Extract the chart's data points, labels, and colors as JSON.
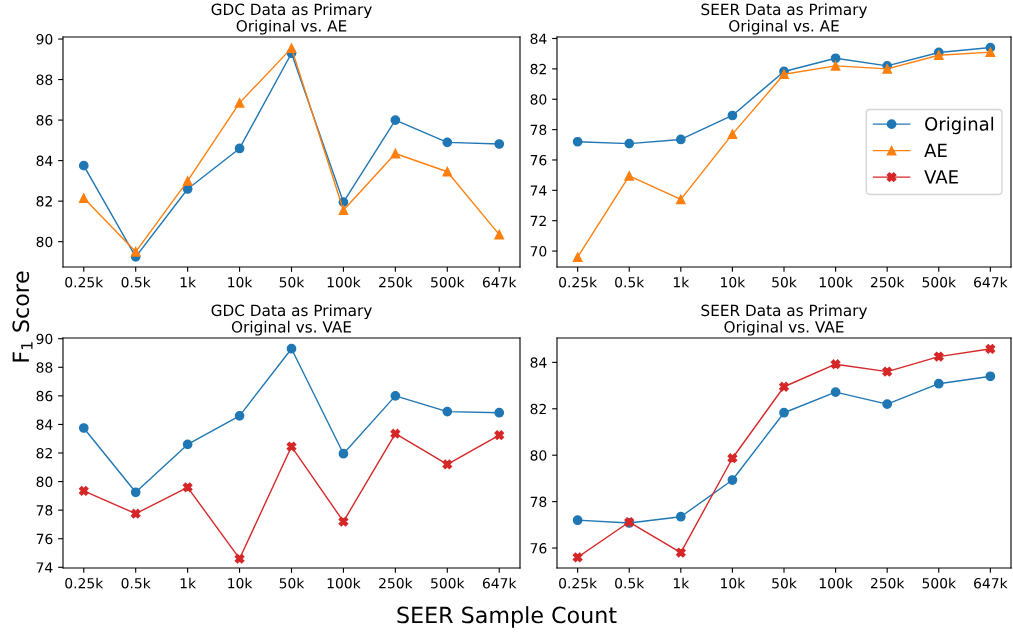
{
  "chart_data": [
    {
      "type": "line",
      "title": "GDC Data as Primary\nOriginal vs. AE",
      "xlabel": "SEER Sample Count",
      "ylabel": "F$_{1}$ Score",
      "categories": [
        "0.25k",
        "0.5k",
        "1k",
        "10k",
        "50k",
        "100k",
        "250k",
        "500k",
        "647k"
      ],
      "ylim": [
        78.75,
        90.1
      ],
      "yticks": [
        80,
        82,
        84,
        86,
        88,
        90
      ],
      "legend": false,
      "series": [
        {
          "color": "#1f77b4",
          "marker": "circle",
          "values": [
            83.75,
            79.25,
            82.6,
            84.6,
            89.3,
            81.95,
            86.0,
            84.9,
            84.82
          ]
        },
        {
          "color": "#ff7f0e",
          "marker": "triangle",
          "values": [
            82.15,
            79.5,
            83.0,
            86.85,
            89.55,
            81.55,
            84.35,
            83.45,
            80.35
          ]
        }
      ]
    },
    {
      "type": "line",
      "title": "SEER Data as Primary\nOriginal vs. AE",
      "categories": [
        "0.25k",
        "0.5k",
        "1k",
        "10k",
        "50k",
        "100k",
        "250k",
        "500k",
        "647k"
      ],
      "ylim": [
        68.95,
        84.1
      ],
      "yticks": [
        70,
        72,
        74,
        76,
        78,
        80,
        82,
        84
      ],
      "legend": "center right",
      "series": [
        {
          "name": "Original",
          "color": "#1f77b4",
          "marker": "circle",
          "values": [
            77.2,
            77.08,
            77.35,
            78.93,
            81.83,
            82.7,
            82.2,
            83.08,
            83.4
          ]
        },
        {
          "name": "AE",
          "color": "#ff7f0e",
          "marker": "triangle",
          "values": [
            69.6,
            74.95,
            73.4,
            77.7,
            81.65,
            82.2,
            82.0,
            82.9,
            83.1
          ]
        },
        {
          "name": "VAE",
          "color": "#d62728",
          "marker": "cross",
          "values": [
            null,
            null,
            null,
            null,
            null,
            null,
            null,
            null,
            null
          ]
        }
      ]
    },
    {
      "type": "line",
      "title": "GDC Data as Primary\nOriginal vs. VAE",
      "categories": [
        "0.25k",
        "0.5k",
        "1k",
        "10k",
        "50k",
        "100k",
        "250k",
        "500k",
        "647k"
      ],
      "ylim": [
        73.95,
        90.05
      ],
      "yticks": [
        74,
        76,
        78,
        80,
        82,
        84,
        86,
        88,
        90
      ],
      "legend": false,
      "series": [
        {
          "color": "#1f77b4",
          "marker": "circle",
          "values": [
            83.75,
            79.25,
            82.6,
            84.6,
            89.3,
            81.95,
            86.0,
            84.9,
            84.82
          ]
        },
        {
          "color": "#d62728",
          "marker": "cross",
          "values": [
            79.35,
            77.75,
            79.6,
            74.6,
            82.45,
            77.2,
            83.35,
            81.2,
            83.25
          ]
        }
      ]
    },
    {
      "type": "line",
      "title": "SEER Data as Primary\nOriginal vs. VAE",
      "categories": [
        "0.25k",
        "0.5k",
        "1k",
        "10k",
        "50k",
        "100k",
        "250k",
        "500k",
        "647k"
      ],
      "ylim": [
        75.14,
        85.05
      ],
      "yticks": [
        76,
        78,
        80,
        82,
        84
      ],
      "legend": false,
      "series": [
        {
          "color": "#1f77b4",
          "marker": "circle",
          "values": [
            77.2,
            77.08,
            77.35,
            78.93,
            81.83,
            82.72,
            82.2,
            83.08,
            83.4
          ]
        },
        {
          "color": "#d62728",
          "marker": "cross",
          "values": [
            75.6,
            77.12,
            75.8,
            79.87,
            82.95,
            83.92,
            83.6,
            84.25,
            84.58
          ]
        }
      ]
    }
  ]
}
